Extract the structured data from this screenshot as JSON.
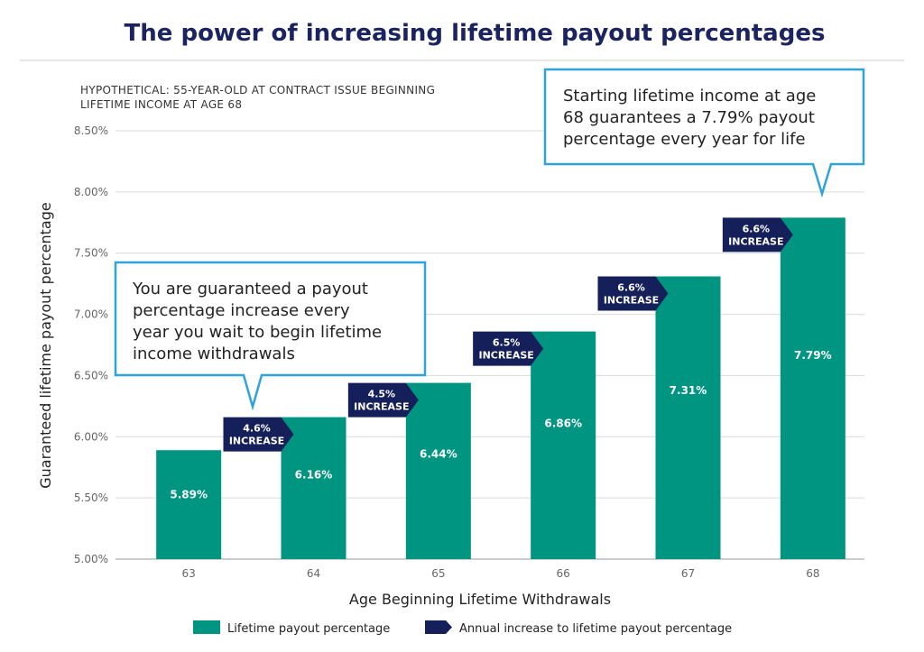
{
  "title": "The power of increasing lifetime payout percentages",
  "subtitle": [
    "HYPOTHETICAL: 55-YEAR-OLD AT CONTRACT ISSUE BEGINNING",
    "LIFETIME INCOME AT AGE 68"
  ],
  "colors": {
    "title": "#1b2360",
    "bar": "#009580",
    "increase_tag": "#15205a",
    "callout_border": "#2ea3dc",
    "rule": "#cccccc",
    "grid": "#d9d9d9"
  },
  "callouts": [
    {
      "lines": [
        "You are guaranteed a payout",
        "percentage increase every",
        "year you wait to begin lifetime",
        "income withdrawals"
      ]
    },
    {
      "lines": [
        "Starting lifetime income at age",
        "68 guarantees a 7.79% payout",
        "percentage every year for life"
      ]
    }
  ],
  "chart_data": {
    "type": "bar",
    "categories": [
      "63",
      "64",
      "65",
      "66",
      "67",
      "68"
    ],
    "series": [
      {
        "name": "Lifetime payout percentage",
        "values": [
          5.89,
          6.16,
          6.44,
          6.86,
          7.31,
          7.79
        ]
      }
    ],
    "value_labels": [
      "5.89%",
      "6.16%",
      "6.44%",
      "6.86%",
      "7.31%",
      "7.79%"
    ],
    "increases": [
      {
        "category": "64",
        "pct": "4.6%",
        "word": "INCREASE"
      },
      {
        "category": "65",
        "pct": "4.5%",
        "word": "INCREASE"
      },
      {
        "category": "66",
        "pct": "6.5%",
        "word": "INCREASE"
      },
      {
        "category": "67",
        "pct": "6.6%",
        "word": "INCREASE"
      },
      {
        "category": "68",
        "pct": "6.6%",
        "word": "INCREASE"
      }
    ],
    "xlabel": "Age Beginning Lifetime Withdrawals",
    "ylabel": "Guaranteed lifetime payout percentage",
    "ylim": [
      5.0,
      8.5
    ],
    "yticks": [
      5.0,
      5.5,
      6.0,
      6.5,
      7.0,
      7.5,
      8.0,
      8.5
    ],
    "ytick_labels": [
      "5.00%",
      "5.50%",
      "6.00%",
      "6.50%",
      "7.00%",
      "7.50%",
      "8.00%",
      "8.50%"
    ],
    "grid": true,
    "legend": {
      "placement": "bottom-center",
      "items": [
        "Lifetime payout percentage",
        "Annual increase to lifetime payout percentage"
      ]
    }
  }
}
